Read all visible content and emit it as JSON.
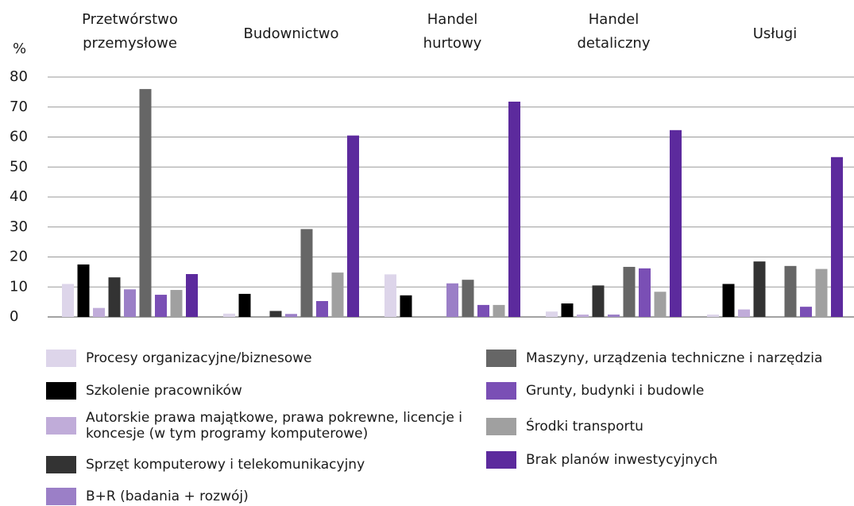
{
  "chart_data": {
    "type": "bar",
    "y_label": "%",
    "categories": [
      "Przetwórstwo przemysłowe",
      "Budownictwo",
      "Handel hurtowy",
      "Handel detaliczny",
      "Usługi"
    ],
    "ylim": [
      0,
      80
    ],
    "yticks": [
      0,
      10,
      20,
      30,
      40,
      50,
      60,
      70,
      80
    ],
    "grid": true,
    "series": [
      {
        "name": "Procesy organizacyjne/biznesowe",
        "color": "#ddd5ea",
        "values": [
          11,
          1.1,
          14.2,
          1.8,
          0.8
        ]
      },
      {
        "name": "Szkolenie pracowników",
        "color": "#000000",
        "values": [
          17.5,
          7.7,
          7.2,
          4.5,
          11
        ]
      },
      {
        "name": "Autorskie prawa majątkowe, prawa pokrewne, licencje i koncesje (w tym programy komputerowe)",
        "color": "#c0acd9",
        "values": [
          3,
          0,
          0,
          0.8,
          2.5
        ]
      },
      {
        "name": "Sprzęt komputerowy i telekomunikacyjny",
        "color": "#333333",
        "values": [
          13.2,
          2,
          0,
          10.5,
          18.5
        ]
      },
      {
        "name": "B+R (badania + rozwój)",
        "color": "#9b7fc7",
        "values": [
          9.2,
          1,
          11.2,
          0.8,
          0
        ]
      },
      {
        "name": "Maszyny, urządzenia techniczne i narzędzia",
        "color": "#666666",
        "values": [
          76,
          29.3,
          12.4,
          16.7,
          17
        ]
      },
      {
        "name": "Grunty, budynki i budowle",
        "color": "#7a4fb5",
        "values": [
          7.4,
          5.3,
          4,
          16.2,
          3.4
        ]
      },
      {
        "name": "Środki transportu",
        "color": "#a0a0a0",
        "values": [
          9,
          14.8,
          4,
          8.4,
          16
        ]
      },
      {
        "name": "Brak planów inwestycyjnych",
        "color": "#5c2a9d",
        "values": [
          14.3,
          60.5,
          71.8,
          62.3,
          53.3
        ]
      }
    ]
  }
}
